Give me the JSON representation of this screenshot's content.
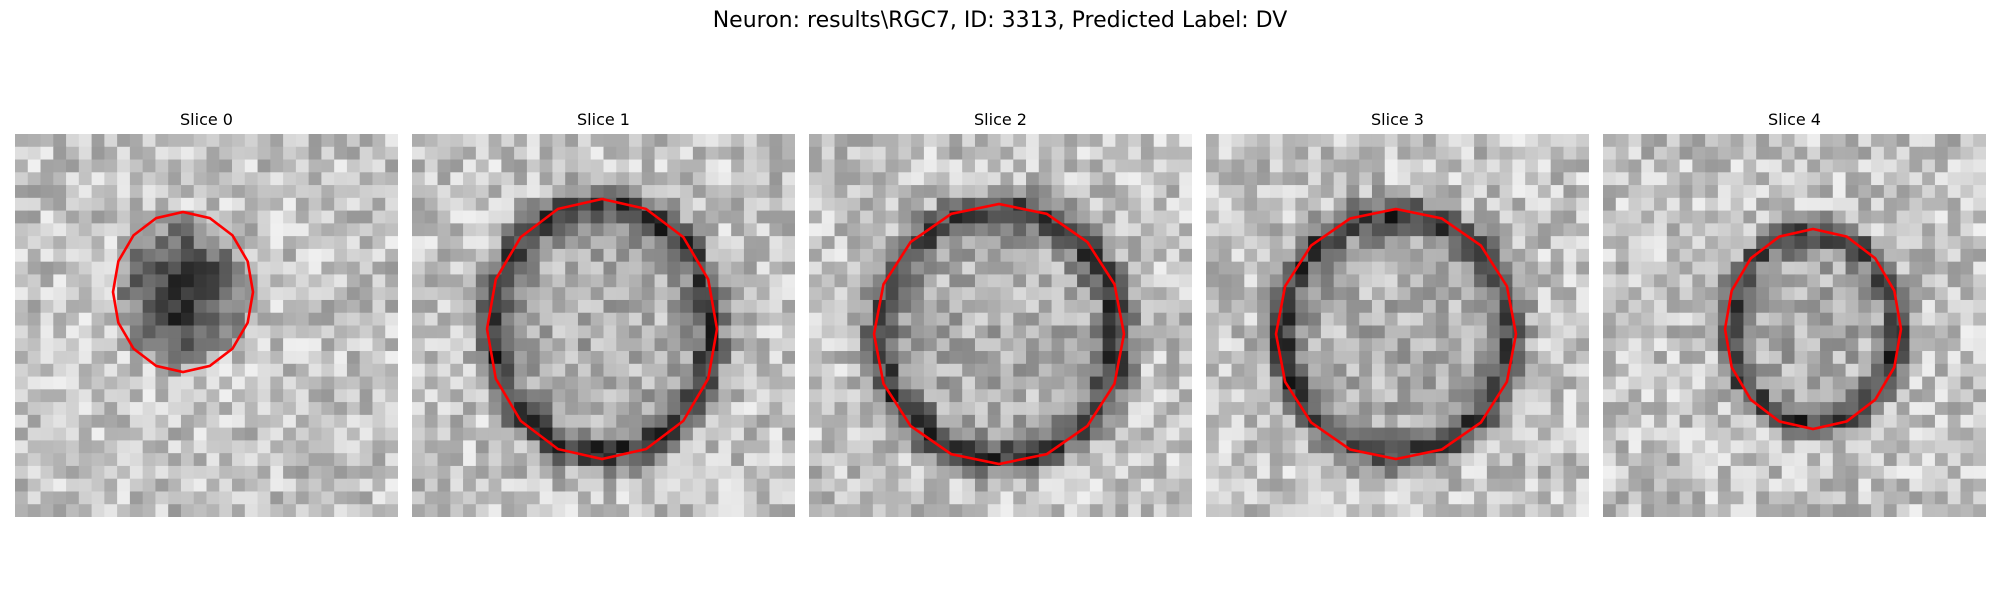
{
  "figure": {
    "title": "Neuron: results\\RGC7, ID: 3313, Predicted Label: DV"
  },
  "panels": [
    {
      "title": "Slice 0",
      "seed": 11
    },
    {
      "title": "Slice 1",
      "seed": 23
    },
    {
      "title": "Slice 2",
      "seed": 37
    },
    {
      "title": "Slice 3",
      "seed": 51
    },
    {
      "title": "Slice 4",
      "seed": 67
    }
  ],
  "colors": {
    "contour": "#ff0000"
  }
}
